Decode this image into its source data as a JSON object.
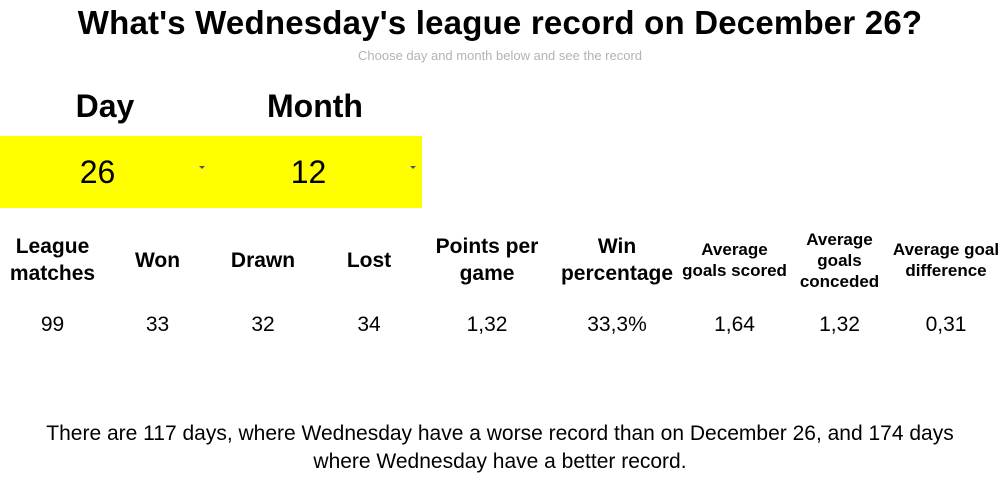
{
  "header": {
    "title": "What's Wednesday's league record on December 26?",
    "subtitle": "Choose day and month below and see the record"
  },
  "selectors": {
    "day_label": "Day",
    "month_label": "Month",
    "day_value": "26",
    "month_value": "12",
    "background_color": "#ffff00"
  },
  "stats": {
    "headers": [
      "League matches",
      "Won",
      "Drawn",
      "Lost",
      "Points per game",
      "Win percentage",
      "Average goals scored",
      "Average goals conceded",
      "Average goal difference"
    ],
    "values": [
      "99",
      "33",
      "32",
      "34",
      "1,32",
      "33,3%",
      "1,64",
      "1,32",
      "0,31"
    ]
  },
  "summary": {
    "line1": "There are 117 days, where Wednesday have a worse record than on December 26, and 174 days",
    "line2": "where Wednesday have a better record."
  }
}
